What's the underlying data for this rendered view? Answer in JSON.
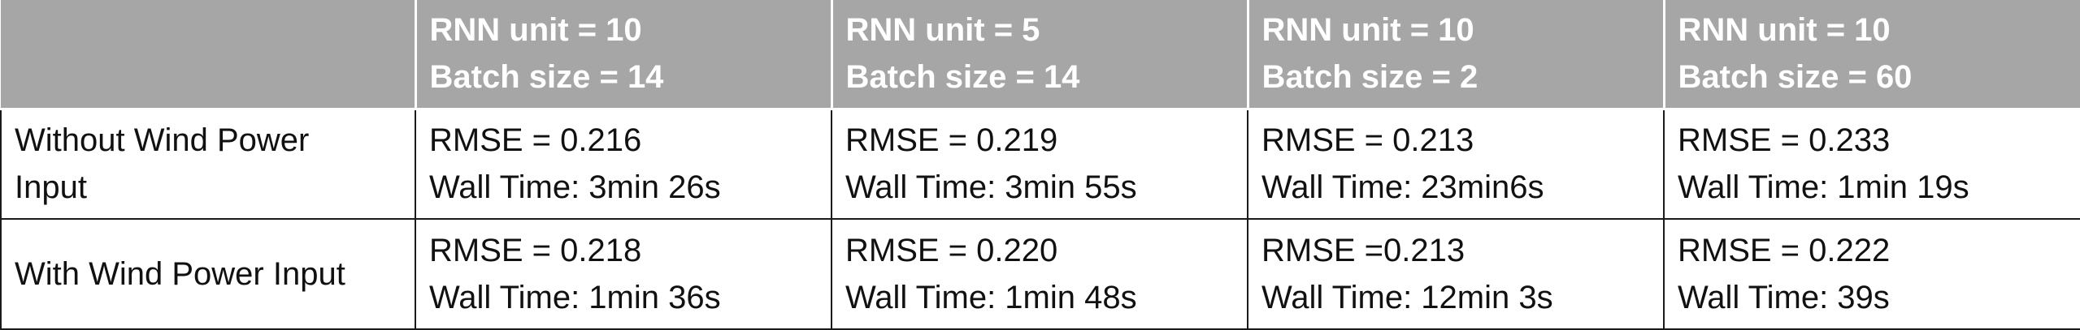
{
  "table": {
    "header": [
      {
        "line1": "",
        "line2": ""
      },
      {
        "line1": "RNN unit = 10",
        "line2": "Batch size = 14"
      },
      {
        "line1": "RNN unit = 5",
        "line2": "Batch size = 14"
      },
      {
        "line1": "RNN unit = 10",
        "line2": "Batch size = 2"
      },
      {
        "line1": "RNN unit = 10",
        "line2": "Batch size = 60"
      }
    ],
    "rows": [
      {
        "label_line1": "Without Wind Power",
        "label_line2": "Input",
        "cells": [
          {
            "rmse": "RMSE = 0.216",
            "time": "Wall Time: 3min 26s"
          },
          {
            "rmse": "RMSE = 0.219",
            "time": "Wall Time: 3min 55s"
          },
          {
            "rmse": "RMSE = 0.213",
            "time": "Wall Time: 23min6s"
          },
          {
            "rmse": "RMSE = 0.233",
            "time": "Wall Time: 1min 19s"
          }
        ]
      },
      {
        "label_line1": "With Wind Power Input",
        "label_line2": "",
        "cells": [
          {
            "rmse": "RMSE = 0.218",
            "time": "Wall Time: 1min 36s"
          },
          {
            "rmse": "RMSE = 0.220",
            "time": "Wall Time: 1min 48s"
          },
          {
            "rmse": "RMSE =0.213",
            "time": "Wall Time: 12min 3s"
          },
          {
            "rmse": "RMSE = 0.222",
            "time": "Wall Time: 39s"
          }
        ]
      }
    ]
  }
}
